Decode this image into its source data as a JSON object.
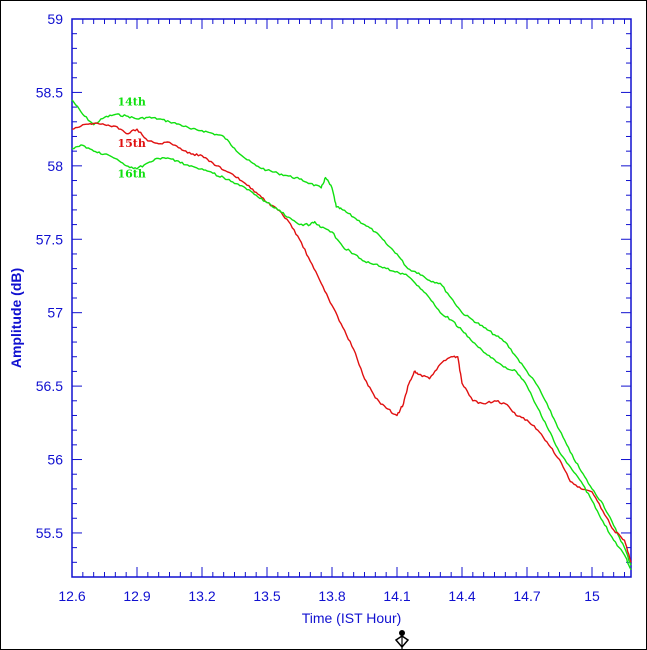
{
  "chart_data": {
    "type": "line",
    "title": "",
    "xlabel": "Time (IST Hour)",
    "ylabel": "Amplitude (dB)",
    "xlim": [
      12.6,
      15.18
    ],
    "ylim": [
      55.2,
      59
    ],
    "xticks": [
      12.6,
      12.9,
      13.2,
      13.5,
      13.8,
      14.1,
      14.4,
      14.7,
      15
    ],
    "yticks": [
      55.5,
      56,
      56.5,
      57,
      57.5,
      58,
      58.5,
      59
    ],
    "grid": false,
    "colors": {
      "axis": "#1010d0",
      "red": "#e01010",
      "green": "#10e010"
    },
    "series": [
      {
        "name": "14th",
        "color": "#10e010",
        "label_at": [
          12.81,
          58.41
        ],
        "x": [
          12.6,
          12.65,
          12.7,
          12.75,
          12.8,
          12.85,
          12.9,
          12.95,
          13.0,
          13.05,
          13.1,
          13.15,
          13.2,
          13.25,
          13.3,
          13.35,
          13.4,
          13.45,
          13.5,
          13.55,
          13.6,
          13.65,
          13.7,
          13.75,
          13.77,
          13.8,
          13.82,
          13.85,
          13.9,
          13.95,
          14.0,
          14.05,
          14.1,
          14.15,
          14.2,
          14.25,
          14.3,
          14.35,
          14.4,
          14.45,
          14.5,
          14.55,
          14.6,
          14.65,
          14.7,
          14.75,
          14.8,
          14.85,
          14.9,
          14.95,
          15.0,
          15.05,
          15.1,
          15.15,
          15.18
        ],
        "values": [
          58.45,
          58.35,
          58.28,
          58.33,
          58.35,
          58.34,
          58.32,
          58.33,
          58.32,
          58.3,
          58.28,
          58.25,
          58.24,
          58.22,
          58.2,
          58.12,
          58.05,
          58.0,
          57.97,
          57.95,
          57.93,
          57.91,
          57.88,
          57.85,
          57.92,
          57.85,
          57.72,
          57.7,
          57.65,
          57.6,
          57.55,
          57.47,
          57.4,
          57.3,
          57.27,
          57.22,
          57.2,
          57.1,
          57.0,
          56.95,
          56.9,
          56.85,
          56.8,
          56.7,
          56.6,
          56.5,
          56.35,
          56.2,
          56.05,
          55.92,
          55.8,
          55.7,
          55.55,
          55.4,
          55.28
        ]
      },
      {
        "name": "15th",
        "color": "#e01010",
        "label_at": [
          12.81,
          58.13
        ],
        "x": [
          12.6,
          12.65,
          12.7,
          12.75,
          12.8,
          12.85,
          12.9,
          12.95,
          13.0,
          13.05,
          13.1,
          13.15,
          13.2,
          13.25,
          13.3,
          13.35,
          13.4,
          13.45,
          13.5,
          13.55,
          13.6,
          13.65,
          13.7,
          13.75,
          13.8,
          13.85,
          13.9,
          13.95,
          14.0,
          14.05,
          14.1,
          14.13,
          14.15,
          14.18,
          14.2,
          14.25,
          14.3,
          14.35,
          14.38,
          14.4,
          14.45,
          14.5,
          14.55,
          14.6,
          14.65,
          14.7,
          14.75,
          14.8,
          14.85,
          14.9,
          14.95,
          15.0,
          15.05,
          15.1,
          15.15,
          15.18
        ],
        "values": [
          58.25,
          58.28,
          58.29,
          58.28,
          58.27,
          58.22,
          58.25,
          58.17,
          58.15,
          58.16,
          58.12,
          58.08,
          58.07,
          58.02,
          57.97,
          57.93,
          57.88,
          57.82,
          57.75,
          57.7,
          57.62,
          57.5,
          57.35,
          57.2,
          57.05,
          56.9,
          56.75,
          56.55,
          56.42,
          56.35,
          56.3,
          56.38,
          56.5,
          56.6,
          56.58,
          56.55,
          56.65,
          56.7,
          56.7,
          56.52,
          56.4,
          56.38,
          56.4,
          56.38,
          56.3,
          56.27,
          56.2,
          56.1,
          56.0,
          55.85,
          55.8,
          55.78,
          55.65,
          55.52,
          55.45,
          55.3
        ]
      },
      {
        "name": "16th",
        "color": "#10e010",
        "label_at": [
          12.81,
          57.92
        ],
        "x": [
          12.6,
          12.65,
          12.7,
          12.75,
          12.8,
          12.85,
          12.9,
          12.95,
          13.0,
          13.05,
          13.1,
          13.15,
          13.2,
          13.25,
          13.3,
          13.35,
          13.4,
          13.45,
          13.5,
          13.55,
          13.6,
          13.65,
          13.7,
          13.72,
          13.75,
          13.8,
          13.85,
          13.9,
          13.95,
          14.0,
          14.05,
          14.1,
          14.15,
          14.2,
          14.25,
          14.3,
          14.35,
          14.4,
          14.45,
          14.5,
          14.55,
          14.6,
          14.65,
          14.7,
          14.75,
          14.8,
          14.85,
          14.9,
          14.95,
          15.0,
          15.05,
          15.1,
          15.15,
          15.18
        ],
        "values": [
          58.12,
          58.14,
          58.1,
          58.08,
          58.05,
          58.0,
          57.98,
          58.02,
          58.05,
          58.05,
          58.02,
          58.0,
          57.98,
          57.95,
          57.92,
          57.88,
          57.85,
          57.8,
          57.75,
          57.7,
          57.65,
          57.6,
          57.6,
          57.62,
          57.58,
          57.55,
          57.45,
          57.4,
          57.35,
          57.33,
          57.3,
          57.28,
          57.25,
          57.18,
          57.1,
          57.0,
          56.95,
          56.88,
          56.8,
          56.73,
          56.68,
          56.63,
          56.6,
          56.5,
          56.35,
          56.2,
          56.05,
          55.95,
          55.85,
          55.72,
          55.58,
          55.45,
          55.35,
          55.25
        ]
      }
    ]
  }
}
